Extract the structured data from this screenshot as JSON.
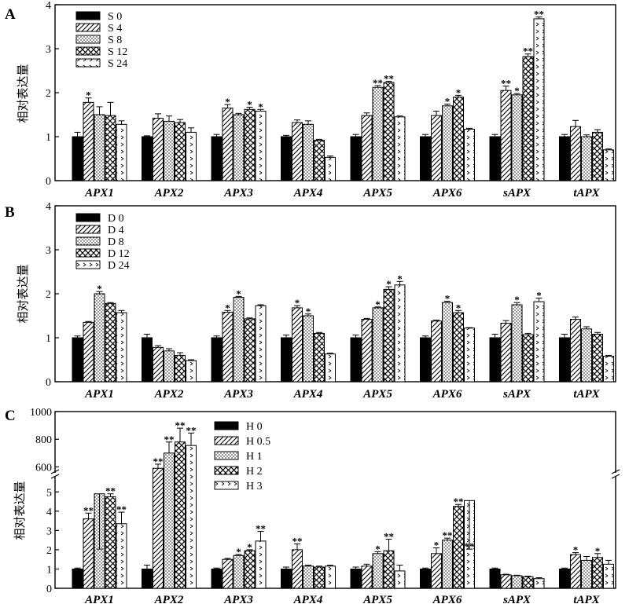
{
  "colors": {
    "ink": "#000000",
    "paper": "#ffffff"
  },
  "chart_data": [
    {
      "panel": "A",
      "type": "bar",
      "ylabel": "相对表达量",
      "ylim": [
        0,
        4
      ],
      "yticks": [
        "0",
        "1",
        "2",
        "3",
        "4"
      ],
      "legend_position": "top-left",
      "categories": [
        "APX1",
        "APX2",
        "APX3",
        "APX4",
        "APX5",
        "APX6",
        "sAPX",
        "tAPX"
      ],
      "series": [
        {
          "name": "S 0",
          "pattern": "solid",
          "values": [
            1,
            1,
            1,
            1,
            1,
            1,
            1,
            1
          ],
          "errors": [
            0.1,
            0.02,
            0.05,
            0.03,
            0.05,
            0.05,
            0.05,
            0.05
          ],
          "sig": [
            "",
            "",
            "",
            "",
            "",
            "",
            "",
            ""
          ]
        },
        {
          "name": "S 4",
          "pattern": "hatch",
          "values": [
            1.78,
            1.42,
            1.65,
            1.32,
            1.48,
            1.48,
            2.05,
            1.23
          ],
          "errors": [
            0.1,
            0.1,
            0.08,
            0.06,
            0.06,
            0.1,
            0.1,
            0.14
          ],
          "sig": [
            "*",
            "",
            "*",
            "",
            "",
            "",
            "**",
            ""
          ]
        },
        {
          "name": "S 8",
          "pattern": "dots",
          "values": [
            1.5,
            1.35,
            1.5,
            1.28,
            2.12,
            1.7,
            1.95,
            1.0
          ],
          "errors": [
            0.18,
            0.12,
            0.03,
            0.08,
            0.04,
            0.04,
            0.03,
            0.04
          ],
          "sig": [
            "",
            "",
            "",
            "",
            "**",
            "*",
            "*",
            ""
          ]
        },
        {
          "name": "S 12",
          "pattern": "cross",
          "values": [
            1.48,
            1.32,
            1.62,
            0.92,
            2.23,
            1.9,
            2.82,
            1.1
          ],
          "errors": [
            0.3,
            0.07,
            0.05,
            0.02,
            0.03,
            0.04,
            0.06,
            0.06
          ],
          "sig": [
            "",
            "",
            "*",
            "",
            "**",
            "*",
            "**",
            ""
          ]
        },
        {
          "name": "S 24",
          "pattern": "chevron",
          "values": [
            1.28,
            1.1,
            1.58,
            0.53,
            1.45,
            1.17,
            3.68,
            0.7
          ],
          "errors": [
            0.08,
            0.1,
            0.04,
            0.03,
            0.02,
            0.02,
            0.04,
            0.02
          ],
          "sig": [
            "",
            "",
            "*",
            "",
            "",
            "",
            "**",
            ""
          ]
        }
      ]
    },
    {
      "panel": "B",
      "type": "bar",
      "ylabel": "相对表达量",
      "ylim": [
        0,
        4
      ],
      "yticks": [
        "0",
        "1",
        "2",
        "3",
        "4"
      ],
      "legend_position": "top-left",
      "categories": [
        "APX1",
        "APX2",
        "APX3",
        "APX4",
        "APX5",
        "APX6",
        "sAPX",
        "tAPX"
      ],
      "series": [
        {
          "name": "D 0",
          "pattern": "solid",
          "values": [
            1,
            1,
            1,
            1,
            1,
            1,
            1,
            1
          ],
          "errors": [
            0.04,
            0.08,
            0.04,
            0.06,
            0.06,
            0.04,
            0.08,
            0.08
          ],
          "sig": [
            "",
            "",
            "",
            "",
            "",
            "",
            "",
            ""
          ]
        },
        {
          "name": "D 4",
          "pattern": "hatch",
          "values": [
            1.35,
            0.78,
            1.58,
            1.68,
            1.42,
            1.38,
            1.33,
            1.42
          ],
          "errors": [
            0.02,
            0.04,
            0.04,
            0.05,
            0.02,
            0.02,
            0.06,
            0.05
          ],
          "sig": [
            "",
            "",
            "*",
            "*",
            "",
            "",
            "",
            ""
          ]
        },
        {
          "name": "D 8",
          "pattern": "dots",
          "values": [
            2.0,
            0.7,
            1.92,
            1.5,
            1.68,
            1.8,
            1.75,
            1.2
          ],
          "errors": [
            0.05,
            0.05,
            0.02,
            0.04,
            0.02,
            0.03,
            0.05,
            0.05
          ],
          "sig": [
            "*",
            "",
            "*",
            "*",
            "*",
            "*",
            "*",
            ""
          ]
        },
        {
          "name": "D 12",
          "pattern": "cross",
          "values": [
            1.78,
            0.6,
            1.43,
            1.1,
            2.1,
            1.57,
            1.07,
            1.08
          ],
          "errors": [
            0.02,
            0.06,
            0.02,
            0.02,
            0.06,
            0.05,
            0.03,
            0.04
          ],
          "sig": [
            "",
            "",
            "",
            "",
            "*",
            "*",
            "",
            ""
          ]
        },
        {
          "name": "D 24",
          "pattern": "chevron",
          "values": [
            1.57,
            0.48,
            1.73,
            0.63,
            2.2,
            1.22,
            1.82,
            0.58
          ],
          "errors": [
            0.05,
            0.02,
            0.02,
            0.02,
            0.08,
            0.01,
            0.08,
            0.02
          ],
          "sig": [
            "",
            "",
            "",
            "",
            "*",
            "",
            "*",
            ""
          ]
        }
      ]
    },
    {
      "panel": "C",
      "type": "bar",
      "ylabel": "相对表达量",
      "y_axis_broken": true,
      "ylim_lower": [
        0,
        5.5
      ],
      "ylim_upper": [
        580,
        1000
      ],
      "yticks_lower": [
        "0",
        "1",
        "2",
        "3",
        "4",
        "5"
      ],
      "yticks_upper": [
        "600",
        "800",
        "1000"
      ],
      "legend_position": "top-right",
      "categories": [
        "APX1",
        "APX2",
        "APX3",
        "APX4",
        "APX5",
        "APX6",
        "sAPX",
        "tAPX"
      ],
      "series": [
        {
          "name": "H 0",
          "pattern": "solid",
          "values": [
            1,
            1,
            1,
            1,
            1,
            1,
            1,
            1
          ],
          "errors": [
            0.05,
            0.2,
            0.05,
            0.1,
            0.1,
            0.05,
            0.05,
            0.05
          ],
          "sig": [
            "",
            "",
            "",
            "",
            "",
            "",
            "",
            ""
          ]
        },
        {
          "name": "H 0.5",
          "pattern": "hatch",
          "values": [
            3.6,
            590,
            1.5,
            2.0,
            1.15,
            1.8,
            0.7,
            1.75
          ],
          "errors": [
            0.3,
            30,
            0.05,
            0.3,
            0.1,
            0.3,
            0.03,
            0.1
          ],
          "sig": [
            "**",
            "**",
            "",
            "**",
            "",
            "*",
            "",
            "*"
          ]
        },
        {
          "name": "H 1",
          "pattern": "dots",
          "values": [
            4.9,
            700,
            1.7,
            1.15,
            1.8,
            2.5,
            0.65,
            1.45
          ],
          "errors": [
            1.1,
            80,
            0.05,
            0.05,
            0.1,
            0.1,
            0.03,
            0.2
          ],
          "sig": [
            "",
            "**",
            "*",
            "",
            "*",
            "**",
            "",
            ""
          ]
        },
        {
          "name": "H 2",
          "pattern": "cross",
          "values": [
            4.75,
            780,
            1.95,
            1.1,
            1.95,
            4.25,
            0.6,
            1.6
          ],
          "errors": [
            0.15,
            100,
            0.05,
            0.05,
            0.6,
            0.1,
            0.03,
            0.2
          ],
          "sig": [
            "**",
            "**",
            "*",
            "",
            "**",
            "**",
            "",
            "*"
          ]
        },
        {
          "name": "H 3",
          "pattern": "chevron",
          "values": [
            3.35,
            755,
            2.45,
            1.15,
            0.9,
            4.55,
            0.5,
            1.25
          ],
          "errors": [
            0.6,
            90,
            0.5,
            0.05,
            0.3,
            1.1,
            0.05,
            0.2
          ],
          "sig": [
            "**",
            "**",
            "**",
            "",
            "",
            "**",
            "",
            ""
          ]
        }
      ]
    }
  ]
}
